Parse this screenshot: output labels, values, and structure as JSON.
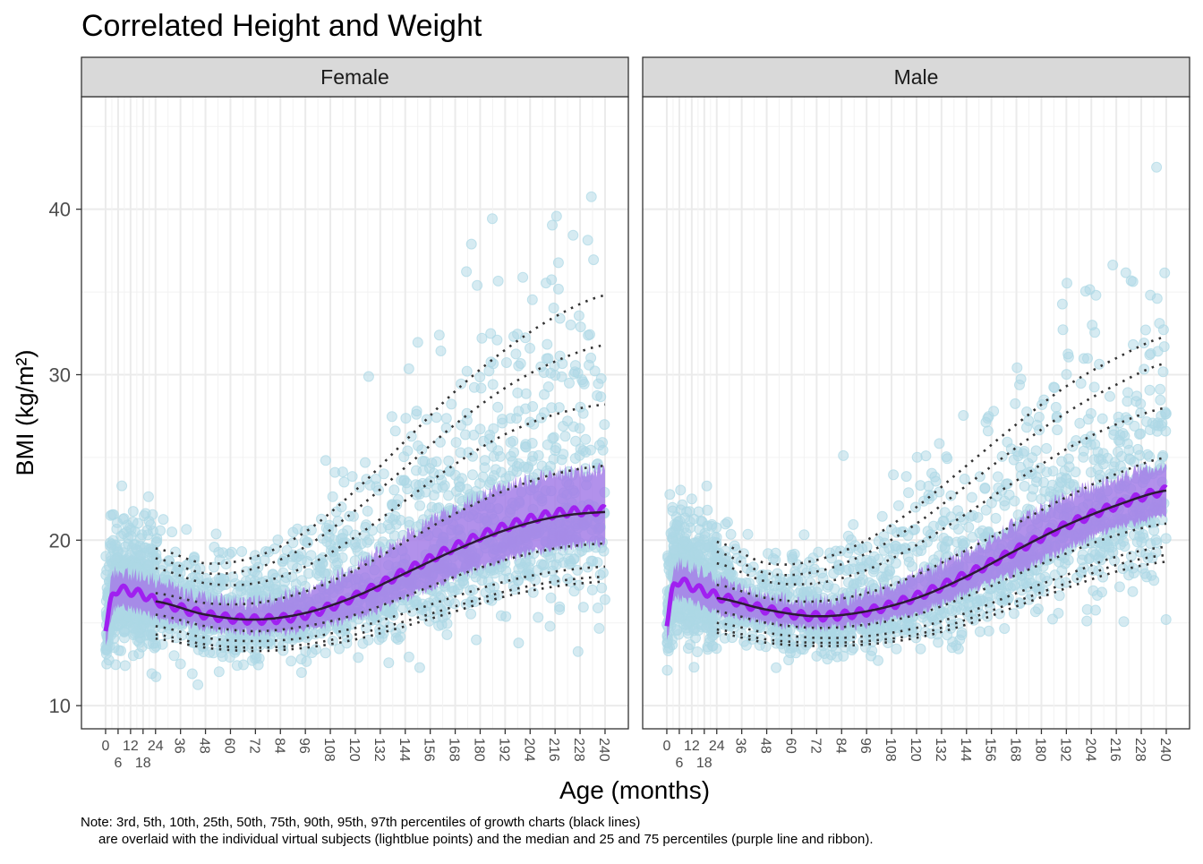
{
  "chart_data": {
    "type": "scatter",
    "title": "Correlated Height and Weight",
    "xlabel": "Age (months)",
    "ylabel": "BMI (kg/m²)",
    "xlim": [
      -11.6,
      251.2
    ],
    "ylim": [
      8.6,
      46.8
    ],
    "x_ticks": [
      0,
      6,
      12,
      18,
      24,
      36,
      48,
      60,
      72,
      84,
      96,
      108,
      120,
      132,
      144,
      156,
      168,
      180,
      192,
      204,
      216,
      228,
      240
    ],
    "y_ticks": [
      10,
      20,
      30,
      40
    ],
    "grid": true,
    "colors": {
      "points": "#add8e6",
      "ribbon": "#a57ee8",
      "median_sim": "#a020f0",
      "median_chart": "#2b1a33",
      "percentiles": "#333333",
      "strip": "#d9d9d9"
    },
    "percentile_labels": [
      "3rd",
      "5th",
      "10th",
      "25th",
      "50th",
      "75th",
      "90th",
      "95th",
      "97th"
    ],
    "percentile_ages": [
      24,
      48,
      72,
      96,
      120,
      144,
      168,
      192,
      216,
      240
    ],
    "sim_ages": [
      0,
      3,
      6,
      12,
      18,
      24,
      48,
      72,
      96,
      120,
      144,
      168,
      192,
      216,
      240
    ],
    "panels": [
      {
        "name": "Female",
        "percentiles": {
          "p3": [
            14.05,
            13.5,
            13.3,
            13.5,
            14.0,
            14.8,
            15.7,
            16.6,
            17.2,
            17.5
          ],
          "p5": [
            14.3,
            13.7,
            13.5,
            13.7,
            14.3,
            15.1,
            16.0,
            16.9,
            17.5,
            17.8
          ],
          "p10": [
            14.8,
            14.1,
            13.9,
            14.1,
            14.7,
            15.6,
            16.6,
            17.5,
            18.1,
            18.4
          ],
          "p25": [
            15.5,
            14.8,
            14.5,
            14.8,
            15.5,
            16.6,
            17.8,
            18.8,
            19.5,
            19.8
          ],
          "p50": [
            16.3,
            15.5,
            15.2,
            15.6,
            16.6,
            18.0,
            19.4,
            20.6,
            21.4,
            21.7
          ],
          "p75": [
            16.8,
            16.2,
            16.2,
            16.9,
            18.2,
            19.9,
            21.6,
            23.0,
            24.0,
            24.5
          ],
          "p90": [
            18.3,
            17.4,
            17.4,
            18.4,
            20.2,
            22.4,
            24.6,
            26.4,
            27.6,
            28.2
          ],
          "p95": [
            18.9,
            18.0,
            18.3,
            19.6,
            21.8,
            24.4,
            27.0,
            29.2,
            30.8,
            31.8
          ],
          "p97": [
            19.5,
            18.6,
            19.0,
            20.5,
            23.0,
            26.0,
            29.0,
            31.5,
            33.5,
            34.8
          ]
        },
        "sim_median": [
          14.5,
          16.6,
          17.0,
          16.9,
          16.7,
          16.3,
          15.5,
          15.2,
          15.5,
          16.6,
          18.1,
          19.6,
          20.8,
          21.6,
          21.8
        ],
        "sim_q25": [
          13.5,
          15.5,
          16.0,
          15.8,
          15.6,
          15.3,
          14.7,
          14.4,
          14.6,
          15.3,
          16.5,
          17.7,
          18.8,
          19.5,
          19.8
        ],
        "sim_q75": [
          15.5,
          17.8,
          18.0,
          18.0,
          17.8,
          17.5,
          16.5,
          16.3,
          17.0,
          18.4,
          20.2,
          22.0,
          23.3,
          24.0,
          24.3
        ]
      },
      {
        "name": "Male",
        "percentiles": {
          "p3": [
            14.4,
            13.8,
            13.6,
            13.7,
            14.1,
            14.9,
            16.0,
            17.1,
            18.1,
            18.7
          ],
          "p5": [
            14.6,
            14.0,
            13.8,
            13.9,
            14.3,
            15.2,
            16.3,
            17.4,
            18.5,
            19.1
          ],
          "p10": [
            15.0,
            14.4,
            14.1,
            14.2,
            14.7,
            15.6,
            16.8,
            17.9,
            19.0,
            19.6
          ],
          "p25": [
            15.7,
            15.0,
            14.7,
            14.9,
            15.5,
            16.6,
            17.9,
            19.2,
            20.3,
            21.0
          ],
          "p50": [
            16.5,
            15.8,
            15.4,
            15.7,
            16.5,
            17.8,
            19.4,
            20.9,
            22.1,
            23.0
          ],
          "p75": [
            17.3,
            16.5,
            16.3,
            16.8,
            17.9,
            19.4,
            21.0,
            22.6,
            24.0,
            25.0
          ],
          "p90": [
            18.6,
            17.5,
            17.4,
            18.2,
            19.7,
            21.6,
            23.6,
            25.5,
            27.0,
            28.0
          ],
          "p95": [
            19.3,
            18.0,
            18.1,
            19.2,
            21.0,
            23.3,
            25.6,
            27.7,
            29.4,
            30.7
          ],
          "p97": [
            19.9,
            18.6,
            18.8,
            20.0,
            22.0,
            24.5,
            27.0,
            29.3,
            31.0,
            32.3
          ]
        },
        "sim_median": [
          14.8,
          17.2,
          17.5,
          17.2,
          16.9,
          16.6,
          15.8,
          15.4,
          15.7,
          16.6,
          17.9,
          19.4,
          20.9,
          22.1,
          23.0
        ],
        "sim_q25": [
          13.8,
          16.2,
          16.5,
          16.3,
          15.9,
          15.6,
          15.0,
          14.7,
          14.9,
          15.6,
          16.8,
          18.1,
          19.5,
          20.7,
          21.4
        ],
        "sim_q75": [
          15.8,
          18.2,
          18.5,
          18.3,
          18.0,
          17.6,
          16.6,
          16.3,
          16.8,
          17.9,
          19.3,
          21.0,
          22.6,
          23.8,
          24.6
        ]
      }
    ],
    "note_line1": "Note: 3rd, 5th, 10th, 25th, 50th, 75th, 90th, 95th, 97th percentiles of growth charts (black lines)",
    "note_line2": "are overlaid with the individual virtual subjects (lightblue points) and the median and 25 and 75 percentiles (purple line and ribbon)."
  }
}
